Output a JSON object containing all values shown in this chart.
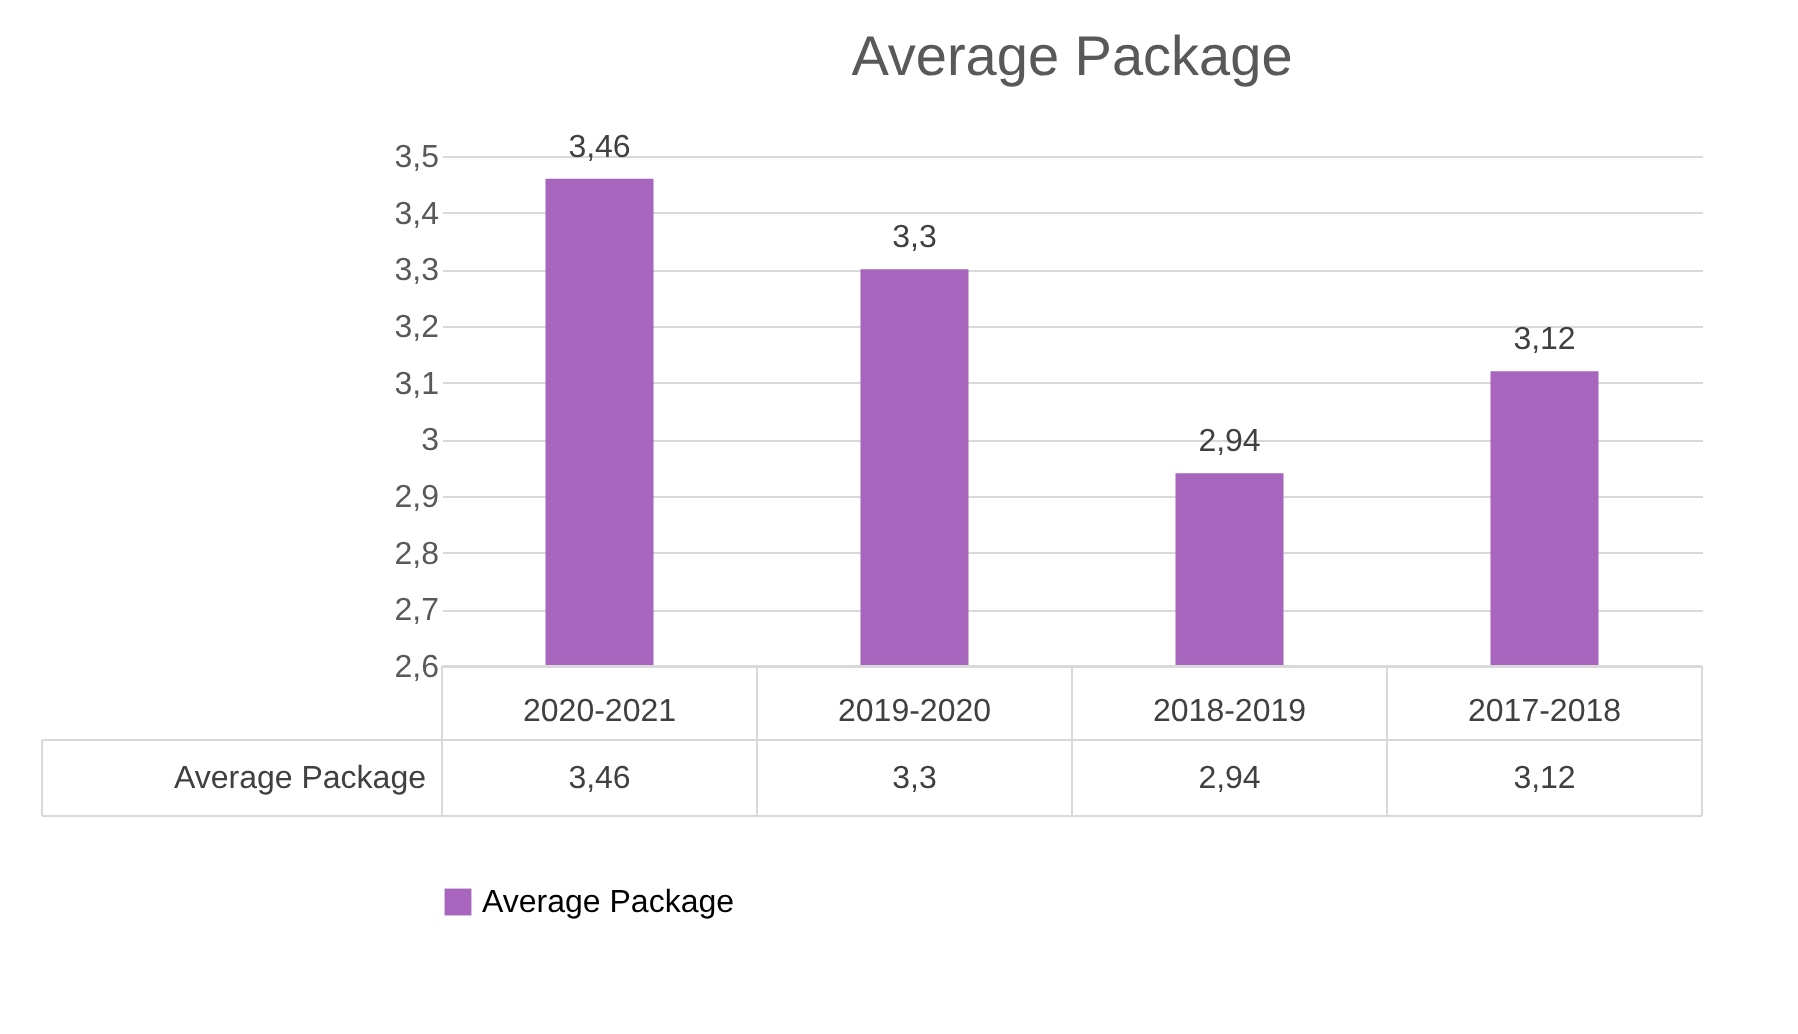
{
  "chart_data": {
    "type": "bar",
    "title": "Average Package",
    "categories": [
      "2020-2021",
      "2019-2020",
      "2018-2019",
      "2017-2018"
    ],
    "series": [
      {
        "name": "Average Package",
        "color": "#a865bd",
        "values": [
          3.46,
          3.3,
          2.94,
          3.12
        ],
        "value_labels": [
          "3,46",
          "3,3",
          "2,94",
          "3,12"
        ]
      }
    ],
    "ylim": [
      2.6,
      3.5
    ],
    "yticks": [
      {
        "value": 2.6,
        "label": "2,6"
      },
      {
        "value": 2.7,
        "label": "2,7"
      },
      {
        "value": 2.8,
        "label": "2,8"
      },
      {
        "value": 2.9,
        "label": "2,9"
      },
      {
        "value": 3,
        "label": "3"
      },
      {
        "value": 3.1,
        "label": "3,1"
      },
      {
        "value": 3.2,
        "label": "3,2"
      },
      {
        "value": 3.3,
        "label": "3,3"
      },
      {
        "value": 3.4,
        "label": "3,4"
      },
      {
        "value": 3.5,
        "label": "3,5"
      }
    ],
    "grid": "y",
    "legend": "bottom"
  }
}
